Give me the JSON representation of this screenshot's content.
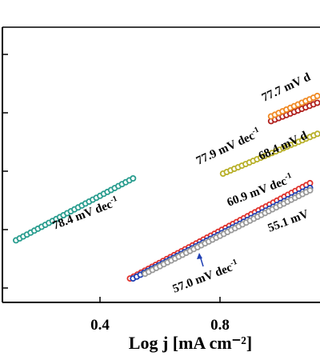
{
  "chart_data": {
    "type": "scatter",
    "title": "",
    "xlabel": "Log j [mA cm⁻²]",
    "ylabel": "",
    "xlim": [
      0.1,
      1.15
    ],
    "ylim": [
      0,
      1
    ],
    "x_ticks": [
      0.4,
      0.8
    ],
    "x_tick_labels": [
      "0.4",
      "0.8"
    ],
    "grid": false,
    "legend": "none",
    "series": [
      {
        "color": "#2a9d8f",
        "x": [
          0.12,
          0.51
        ],
        "y": [
          0.22,
          0.48
        ]
      },
      {
        "color": "#e0322c",
        "x": [
          0.5,
          1.1
        ],
        "y": [
          0.06,
          0.46
        ]
      },
      {
        "color": "#1f3fb4",
        "x": [
          0.51,
          1.1
        ],
        "y": [
          0.06,
          0.44
        ]
      },
      {
        "color": "#9a9a9a",
        "x": [
          0.55,
          1.1
        ],
        "y": [
          0.08,
          0.43
        ]
      },
      {
        "color": "#b8b02a",
        "x": [
          0.81,
          1.15
        ],
        "y": [
          0.5,
          0.68
        ]
      },
      {
        "color": "#b0201d",
        "x": [
          0.97,
          1.15
        ],
        "y": [
          0.72,
          0.81
        ]
      },
      {
        "color": "#f08a24",
        "x": [
          0.97,
          1.15
        ],
        "y": [
          0.74,
          0.84
        ]
      }
    ],
    "annotations": [
      {
        "label": "78.4 mV dec",
        "sup": "-1"
      },
      {
        "label": "57.0 mV dec",
        "sup": "-1"
      },
      {
        "label": "60.9 mV dec",
        "sup": "-1"
      },
      {
        "label": "55.1 mV",
        "sup": ""
      },
      {
        "label": "77.9 mV dec",
        "sup": "-1"
      },
      {
        "label": "68.4 mV d",
        "sup": ""
      },
      {
        "label": "77.7 mV d",
        "sup": ""
      }
    ]
  }
}
